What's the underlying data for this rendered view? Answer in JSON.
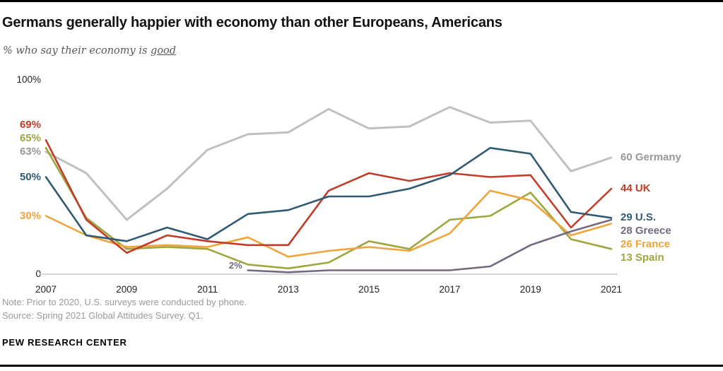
{
  "header": {
    "subtitle_prefix": "% who say their economy is ",
    "subtitle_underline": "good"
  },
  "axis": {
    "y_top_label": "100%",
    "y_bottom_label": "0"
  },
  "chart_data": {
    "type": "line",
    "title": "Germans generally happier with economy than other Europeans, Americans",
    "subtitle": "% who say their economy is good",
    "xlabel": "",
    "ylabel": "",
    "ylim": [
      0,
      100
    ],
    "grid": false,
    "legend_position": "inline-end-labels",
    "x": [
      2007,
      2008,
      2009,
      2010,
      2011,
      2012,
      2013,
      2014,
      2015,
      2016,
      2017,
      2018,
      2019,
      2020,
      2021
    ],
    "x_ticks": [
      "2007",
      "2009",
      "2011",
      "2013",
      "2015",
      "2017",
      "2019",
      "2021"
    ],
    "series": [
      {
        "name": "Germany",
        "color": "#bfc0c2",
        "label_color": "#97989b",
        "line_width": 3,
        "start_label": "63%",
        "end_label": "60 Germany",
        "values": [
          63,
          52,
          28,
          44,
          64,
          72,
          73,
          85,
          75,
          76,
          86,
          78,
          79,
          53,
          60
        ]
      },
      {
        "name": "Spain",
        "color": "#9fa63d",
        "label_color": "#9fa63d",
        "line_width": 2.6,
        "start_label": "65%",
        "end_label": "13 Spain",
        "values": [
          65,
          29,
          13,
          14,
          13,
          5,
          3,
          6,
          17,
          13,
          28,
          30,
          42,
          18,
          13
        ]
      },
      {
        "name": "France",
        "color": "#efa53c",
        "label_color": "#efa53c",
        "line_width": 2.6,
        "start_label": "30%",
        "end_label": "26 France",
        "values": [
          30,
          20,
          14,
          15,
          14,
          19,
          9,
          12,
          14,
          12,
          21,
          43,
          38,
          20,
          26
        ]
      },
      {
        "name": "Greece",
        "color": "#75697f",
        "label_color": "#75697f",
        "line_width": 2.6,
        "start_label": "2%",
        "end_label": "28 Greece",
        "values": [
          null,
          null,
          null,
          null,
          null,
          2,
          1,
          2,
          2,
          2,
          2,
          4,
          15,
          22,
          28
        ]
      },
      {
        "name": "UK",
        "color": "#c13d2a",
        "label_color": "#c13d2a",
        "line_width": 2.6,
        "start_label": "69%",
        "end_label": "44 UK",
        "values": [
          69,
          28,
          11,
          20,
          17,
          15,
          15,
          43,
          52,
          48,
          52,
          50,
          51,
          24,
          44
        ]
      },
      {
        "name": "U.S.",
        "color": "#2f5a74",
        "label_color": "#2f5a74",
        "line_width": 2.6,
        "start_label": "50%",
        "end_label": "29 U.S.",
        "values": [
          50,
          20,
          17,
          24,
          18,
          31,
          33,
          40,
          40,
          44,
          51,
          65,
          62,
          32,
          29
        ]
      }
    ]
  },
  "footer": {
    "note": "Note: Prior to 2020, U.S. surveys were conducted by phone.",
    "source": "Source: Spring 2021 Global Attitudes Survey. Q1.",
    "brand": "PEW RESEARCH CENTER"
  }
}
